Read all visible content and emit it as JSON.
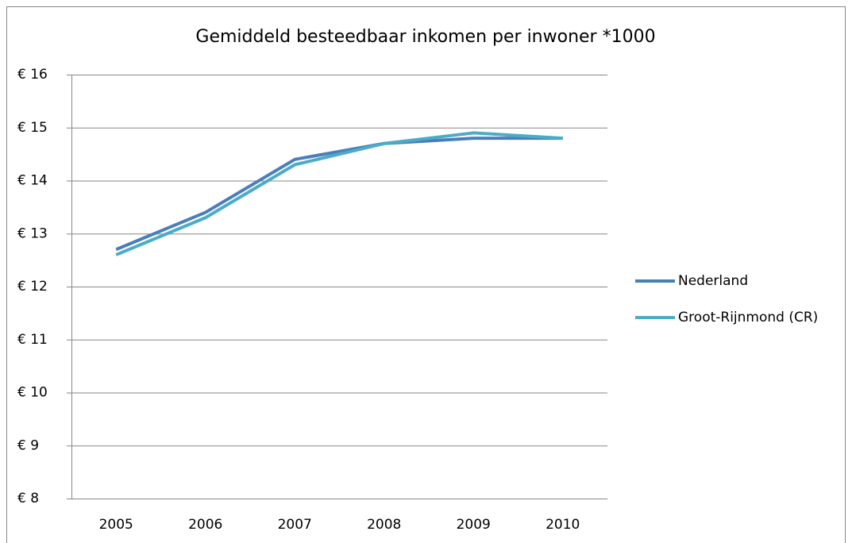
{
  "chart_data": {
    "type": "line",
    "title": "Gemiddeld besteedbaar inkomen per inwoner *1000",
    "categories": [
      "2005",
      "2006",
      "2007",
      "2008",
      "2009",
      "2010"
    ],
    "series": [
      {
        "name": "Nederland",
        "color": "#4a7ebb",
        "values": [
          12.7,
          13.4,
          14.4,
          14.7,
          14.8,
          14.8
        ]
      },
      {
        "name": "Groot-Rijnmond (CR)",
        "color": "#4bacc6",
        "values": [
          12.6,
          13.3,
          14.3,
          14.7,
          14.9,
          14.8
        ]
      }
    ],
    "ylim": [
      8,
      16
    ],
    "yticks": [
      {
        "value": 8,
        "label": "€ 8"
      },
      {
        "value": 9,
        "label": "€ 9"
      },
      {
        "value": 10,
        "label": "€ 10"
      },
      {
        "value": 11,
        "label": "€ 11"
      },
      {
        "value": 12,
        "label": "€ 12"
      },
      {
        "value": 13,
        "label": "€ 13"
      },
      {
        "value": 14,
        "label": "€ 14"
      },
      {
        "value": 15,
        "label": "€ 15"
      },
      {
        "value": 16,
        "label": "€ 16"
      }
    ],
    "grid": true,
    "legend": "right"
  }
}
